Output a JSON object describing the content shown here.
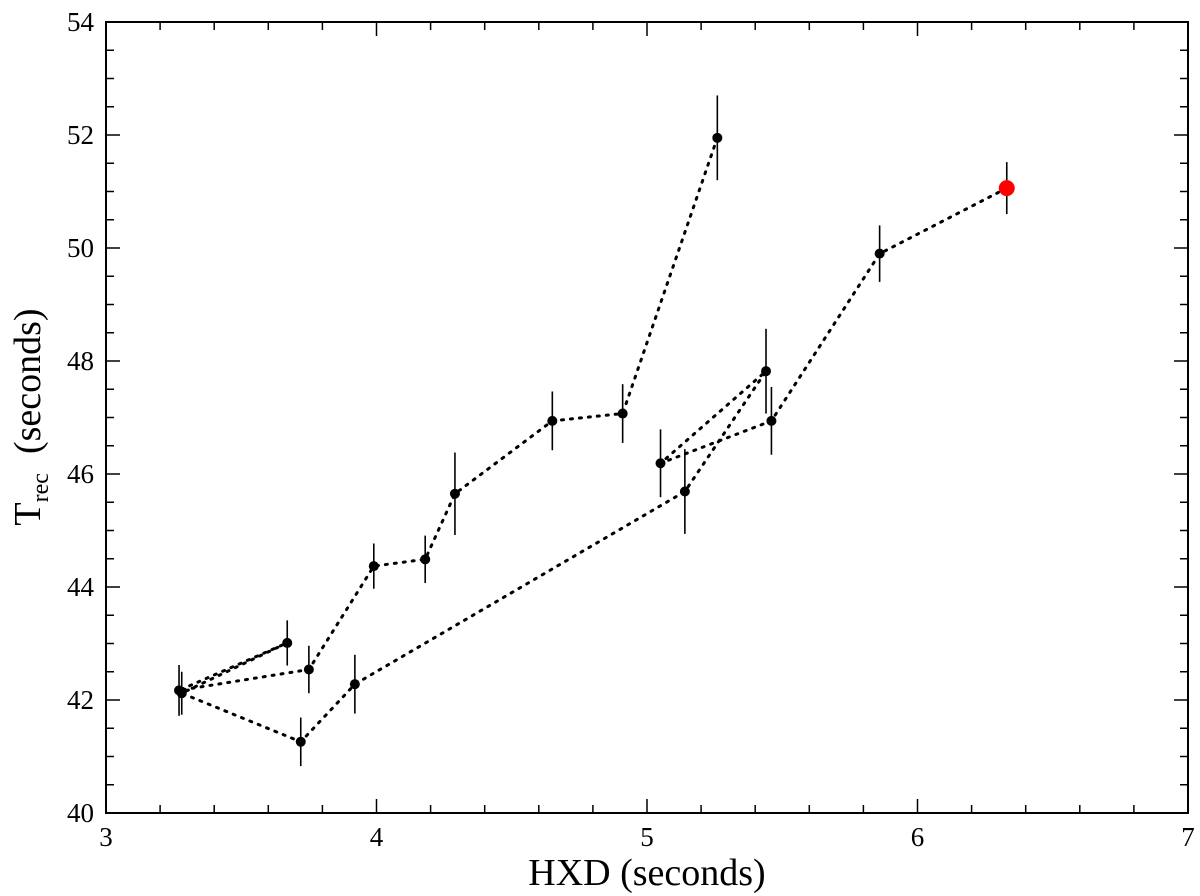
{
  "chart_data": {
    "type": "scatter",
    "xlabel": "HXD  (seconds)",
    "ylabel": {
      "main": "T",
      "subscript": "rec",
      "suffix": "  (seconds)"
    },
    "xlim": [
      3,
      7
    ],
    "ylim": [
      40,
      54
    ],
    "x_ticks": [
      3,
      4,
      5,
      6,
      7
    ],
    "y_ticks": [
      40,
      42,
      44,
      46,
      48,
      50,
      52,
      54
    ],
    "x_minor_step": 0.2,
    "y_minor_step": 0.5,
    "grid": false,
    "legend": "none",
    "connector_style": "dotted",
    "marker_color": "#000000",
    "highlight_color": "#ff0000",
    "points": [
      {
        "x": 5.26,
        "y": 51.95,
        "err": 0.75
      },
      {
        "x": 4.91,
        "y": 47.07,
        "err": 0.52
      },
      {
        "x": 4.65,
        "y": 46.94,
        "err": 0.52
      },
      {
        "x": 4.29,
        "y": 45.65,
        "err": 0.73
      },
      {
        "x": 4.18,
        "y": 44.49,
        "err": 0.42
      },
      {
        "x": 3.99,
        "y": 44.37,
        "err": 0.4
      },
      {
        "x": 3.75,
        "y": 42.54,
        "err": 0.42
      },
      {
        "x": 3.27,
        "y": 42.17,
        "err": 0.45
      },
      {
        "x": 3.67,
        "y": 43.01,
        "err": 0.4
      },
      {
        "x": 3.28,
        "y": 42.12,
        "err": 0.38
      },
      {
        "x": 3.72,
        "y": 41.26,
        "err": 0.43
      },
      {
        "x": 3.92,
        "y": 42.28,
        "err": 0.52
      },
      {
        "x": 5.14,
        "y": 45.69,
        "err": 0.75
      },
      {
        "x": 5.44,
        "y": 47.82,
        "err": 0.75
      },
      {
        "x": 5.05,
        "y": 46.19,
        "err": 0.6
      },
      {
        "x": 5.46,
        "y": 46.94,
        "err": 0.6
      },
      {
        "x": 5.86,
        "y": 49.9,
        "err": 0.5
      },
      {
        "x": 6.33,
        "y": 51.06,
        "err": 0.46,
        "highlight": true
      }
    ]
  }
}
